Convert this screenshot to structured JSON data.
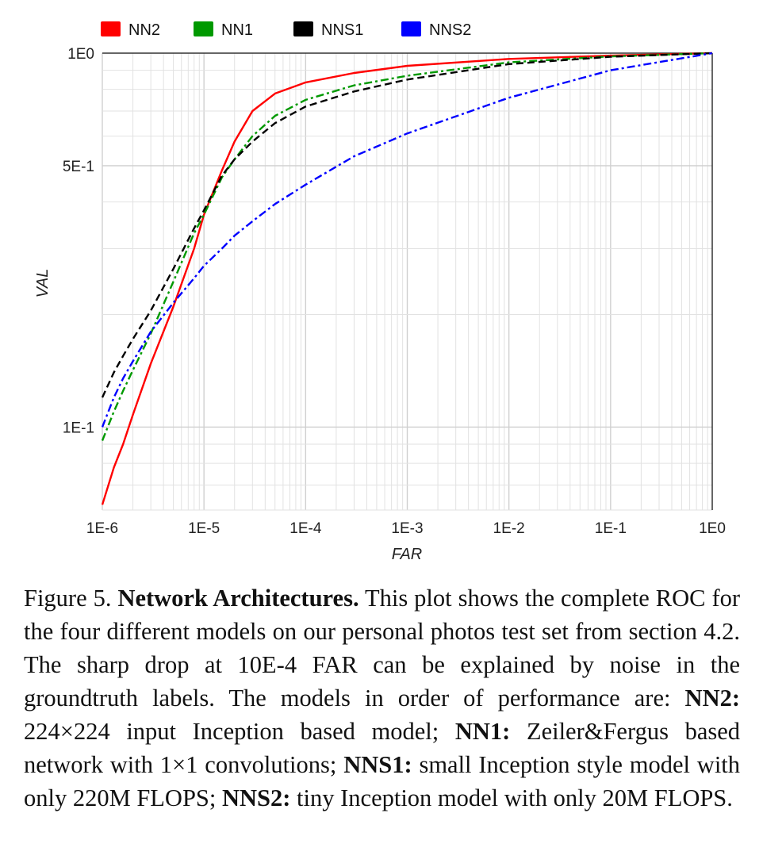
{
  "chart_data": {
    "type": "line",
    "xlabel": "FAR",
    "ylabel": "VAL",
    "x_scale": "log",
    "y_scale": "log",
    "xlim": [
      1e-06,
      1
    ],
    "ylim": [
      0.06,
      1
    ],
    "x_ticks": [
      1e-06,
      1e-05,
      0.0001,
      0.001,
      0.01,
      0.1,
      1
    ],
    "x_tick_labels": [
      "1E-6",
      "1E-5",
      "1E-4",
      "1E-3",
      "1E-2",
      "1E-1",
      "1E0"
    ],
    "y_ticks": [
      0.1,
      0.5,
      1
    ],
    "y_tick_labels": [
      "1E-1",
      "5E-1",
      "1E0"
    ],
    "grid": true,
    "legend_position": "top",
    "series": [
      {
        "name": "NN2",
        "color": "#ff0000",
        "dash": "solid",
        "x": [
          1e-06,
          1.3e-06,
          1.6e-06,
          2e-06,
          3e-06,
          5e-06,
          8e-06,
          1e-05,
          1.5e-05,
          2e-05,
          3e-05,
          5e-05,
          0.0001,
          0.0003,
          0.001,
          0.01,
          0.1,
          1
        ],
        "y": [
          0.062,
          0.078,
          0.09,
          0.108,
          0.148,
          0.21,
          0.3,
          0.37,
          0.485,
          0.58,
          0.7,
          0.78,
          0.835,
          0.885,
          0.925,
          0.965,
          0.985,
          1.0
        ]
      },
      {
        "name": "NN1",
        "color": "#009900",
        "dash": "dashdot",
        "x": [
          1e-06,
          1.3e-06,
          1.6e-06,
          2e-06,
          3e-06,
          5e-06,
          8e-06,
          1e-05,
          1.5e-05,
          2e-05,
          3e-05,
          5e-05,
          0.0001,
          0.0003,
          0.001,
          0.01,
          0.1,
          1
        ],
        "y": [
          0.092,
          0.11,
          0.125,
          0.142,
          0.178,
          0.245,
          0.33,
          0.37,
          0.465,
          0.52,
          0.6,
          0.68,
          0.75,
          0.82,
          0.87,
          0.945,
          0.98,
          1.0
        ]
      },
      {
        "name": "NNS1",
        "color": "#000000",
        "dash": "dashed",
        "x": [
          1e-06,
          1.3e-06,
          1.6e-06,
          2e-06,
          3e-06,
          5e-06,
          8e-06,
          1e-05,
          1.5e-05,
          2e-05,
          3e-05,
          5e-05,
          0.0001,
          0.0003,
          0.001,
          0.01,
          0.1,
          1
        ],
        "y": [
          0.12,
          0.14,
          0.155,
          0.172,
          0.205,
          0.265,
          0.34,
          0.38,
          0.47,
          0.52,
          0.58,
          0.65,
          0.72,
          0.79,
          0.85,
          0.935,
          0.978,
          1.0
        ]
      },
      {
        "name": "NNS2",
        "color": "#0000ff",
        "dash": "dashdot",
        "x": [
          1e-06,
          1.3e-06,
          1.6e-06,
          2e-06,
          3e-06,
          5e-06,
          8e-06,
          1e-05,
          1.5e-05,
          2e-05,
          3e-05,
          5e-05,
          0.0001,
          0.0003,
          0.001,
          0.01,
          0.1,
          1
        ],
        "y": [
          0.1,
          0.12,
          0.135,
          0.15,
          0.18,
          0.215,
          0.25,
          0.27,
          0.3,
          0.325,
          0.355,
          0.395,
          0.445,
          0.53,
          0.61,
          0.76,
          0.9,
          1.0
        ]
      }
    ]
  },
  "caption": {
    "figure_label": "Figure 5.",
    "title": "Network Architectures.",
    "intro": "This plot shows the complete ROC for the four different models on our personal photos test set from section 4.2. The sharp drop at 10E-4 FAR can be explained by noise in the groundtruth labels. The models in order of performance are:",
    "items": [
      {
        "name": "NN2:",
        "text": "224×224 input Inception based model;"
      },
      {
        "name": "NN1:",
        "text": "Zeiler&Fergus based network with 1×1 convolutions;"
      },
      {
        "name": "NNS1:",
        "text": "small Inception style model with only 220M FLOPS;"
      },
      {
        "name": "NNS2:",
        "text": "tiny Inception model with only 20M FLOPS."
      }
    ]
  }
}
